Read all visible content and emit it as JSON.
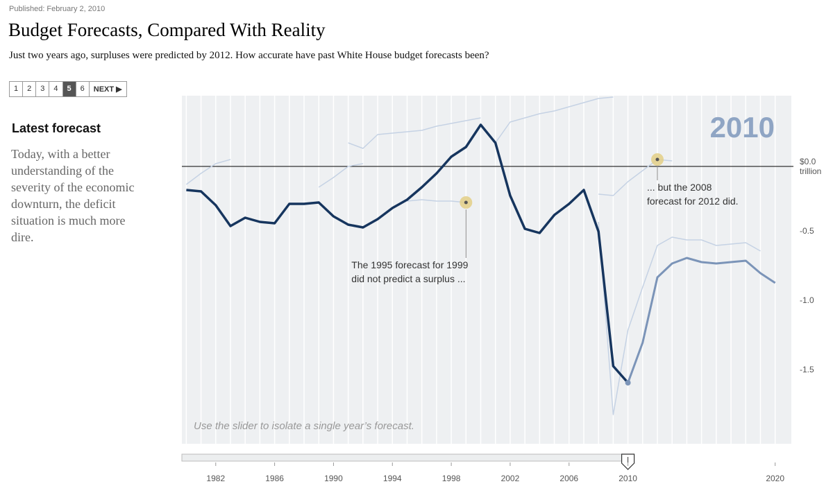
{
  "page": {
    "published": "Published: February 2, 2010",
    "title": "Budget Forecasts, Compared With Reality",
    "subtitle": "Just two years ago, surpluses were predicted by 2012. How accurate have past White House budget forecasts been?",
    "pages": [
      {
        "label": "1"
      },
      {
        "label": "2"
      },
      {
        "label": "3"
      },
      {
        "label": "4"
      },
      {
        "label": "5",
        "current": true
      },
      {
        "label": "6"
      }
    ],
    "next": "NEXT",
    "sidebar_heading": "Latest forecast",
    "sidebar_text": "Today, with a better understanding of the severity of the economic downturn, the deficit situation is much more dire."
  },
  "chart_data": {
    "type": "line",
    "selected_year": 2010,
    "note": "Use the slider to isolate a single year’s forecast.",
    "y_unit": "trillion",
    "x": [
      1980,
      1981,
      1982,
      1983,
      1984,
      1985,
      1986,
      1987,
      1988,
      1989,
      1990,
      1991,
      1992,
      1993,
      1994,
      1995,
      1996,
      1997,
      1998,
      1999,
      2000,
      2001,
      2002,
      2003,
      2004,
      2005,
      2006,
      2007,
      2008,
      2009,
      2010,
      2011,
      2012,
      2013,
      2014,
      2015,
      2016,
      2017,
      2018,
      2019,
      2020
    ],
    "xlim": [
      1979.7,
      2021.1
    ],
    "xticks": [
      1982,
      1986,
      1990,
      1994,
      1998,
      2002,
      2006,
      2010,
      2020
    ],
    "ylim": [
      -2.0,
      0.51
    ],
    "yticks": [
      {
        "value": 0,
        "label": "$0.0"
      },
      -0.5,
      {
        "value": -1,
        "label": "-1.0"
      },
      -1.5
    ],
    "grid": true,
    "series": [
      {
        "color": "#c5d2e4",
        "width": 1.5,
        "values": [
          -0.13,
          -0.05,
          0.02,
          0.05,
          null,
          null,
          null,
          null,
          null,
          null,
          null,
          null,
          null,
          null,
          null,
          null,
          null,
          null,
          null,
          null,
          null,
          null,
          null,
          null,
          null,
          null,
          null,
          null,
          null,
          null,
          null,
          null,
          null,
          null,
          null,
          null,
          null,
          null,
          null,
          null,
          null
        ]
      },
      {
        "color": "#c5d2e4",
        "width": 1.5,
        "values": [
          null,
          null,
          null,
          null,
          null,
          null,
          null,
          null,
          null,
          -0.15,
          -0.08,
          0.0,
          0.02,
          null,
          null,
          null,
          null,
          null,
          null,
          null,
          null,
          null,
          null,
          null,
          null,
          null,
          null,
          null,
          null,
          null,
          null,
          null,
          null,
          null,
          null,
          null,
          null,
          null,
          null,
          null,
          null
        ]
      },
      {
        "color": "#c5d2e4",
        "width": 1.5,
        "values": [
          null,
          null,
          null,
          null,
          null,
          null,
          null,
          null,
          null,
          null,
          null,
          null,
          null,
          null,
          null,
          -0.25,
          -0.24,
          -0.25,
          -0.25,
          -0.26,
          null,
          null,
          null,
          null,
          null,
          null,
          null,
          null,
          null,
          null,
          null,
          null,
          null,
          null,
          null,
          null,
          null,
          null,
          null,
          null,
          null
        ]
      },
      {
        "color": "#c5d2e4",
        "width": 1.5,
        "values": [
          null,
          null,
          null,
          null,
          null,
          null,
          null,
          null,
          null,
          null,
          null,
          null,
          null,
          null,
          null,
          null,
          null,
          null,
          null,
          null,
          null,
          0.17,
          0.32,
          0.35,
          0.38,
          0.4,
          0.43,
          0.46,
          0.49,
          0.5,
          null,
          null,
          null,
          null,
          null,
          null,
          null,
          null,
          null,
          null,
          null
        ]
      },
      {
        "color": "#c5d2e4",
        "width": 1.5,
        "values": [
          null,
          null,
          null,
          null,
          null,
          null,
          null,
          null,
          null,
          null,
          null,
          0.17,
          0.13,
          0.23,
          0.24,
          0.25,
          0.26,
          0.29,
          0.31,
          0.33,
          0.35,
          null,
          null,
          null,
          null,
          null,
          null,
          null,
          null,
          null,
          null,
          null,
          null,
          null,
          null,
          null,
          null,
          null,
          null,
          null,
          null
        ]
      },
      {
        "color": "#c5d2e4",
        "width": 1.5,
        "values": [
          null,
          null,
          null,
          null,
          null,
          null,
          null,
          null,
          null,
          null,
          null,
          null,
          null,
          null,
          null,
          null,
          null,
          null,
          null,
          null,
          null,
          null,
          null,
          null,
          null,
          null,
          null,
          null,
          -0.2,
          -0.21,
          -0.11,
          -0.03,
          0.05,
          0.04,
          null,
          null,
          null,
          null,
          null,
          null,
          null
        ]
      },
      {
        "color": "#c5d2e4",
        "width": 1.5,
        "values": [
          null,
          null,
          null,
          null,
          null,
          null,
          null,
          null,
          null,
          null,
          null,
          null,
          null,
          null,
          null,
          null,
          null,
          null,
          null,
          null,
          null,
          null,
          null,
          null,
          null,
          null,
          null,
          null,
          -0.4,
          -1.79,
          -1.18,
          -0.87,
          -0.57,
          -0.51,
          -0.53,
          -0.53,
          -0.57,
          -0.56,
          -0.55,
          -0.61,
          null
        ]
      },
      {
        "color": "#16355e",
        "width": 3.5,
        "values": [
          -0.17,
          -0.18,
          -0.28,
          -0.43,
          -0.37,
          -0.4,
          -0.41,
          -0.27,
          -0.27,
          -0.26,
          -0.36,
          -0.42,
          -0.44,
          -0.38,
          -0.3,
          -0.24,
          -0.15,
          -0.05,
          0.07,
          0.14,
          0.3,
          0.17,
          -0.21,
          -0.45,
          -0.48,
          -0.35,
          -0.27,
          -0.17,
          -0.47,
          -1.44,
          -1.56,
          null,
          null,
          null,
          null,
          null,
          null,
          null,
          null,
          null,
          null
        ]
      },
      {
        "color": "#7b94b8",
        "width": 3,
        "values": [
          null,
          null,
          null,
          null,
          null,
          null,
          null,
          null,
          null,
          null,
          null,
          null,
          null,
          null,
          null,
          null,
          null,
          null,
          null,
          null,
          null,
          null,
          null,
          null,
          null,
          null,
          null,
          null,
          null,
          null,
          -1.56,
          -1.27,
          -0.8,
          -0.7,
          -0.66,
          -0.69,
          -0.7,
          -0.69,
          -0.68,
          -0.77,
          -0.84
        ]
      }
    ],
    "annotations": [
      {
        "x": 1999,
        "y": -0.26,
        "lines": [
          "The 1995 forecast for 1999",
          "did not predict a surplus ..."
        ]
      },
      {
        "x": 2012,
        "y": 0.05,
        "lines": [
          "... but the 2008",
          "forecast for 2012 did."
        ]
      }
    ]
  }
}
